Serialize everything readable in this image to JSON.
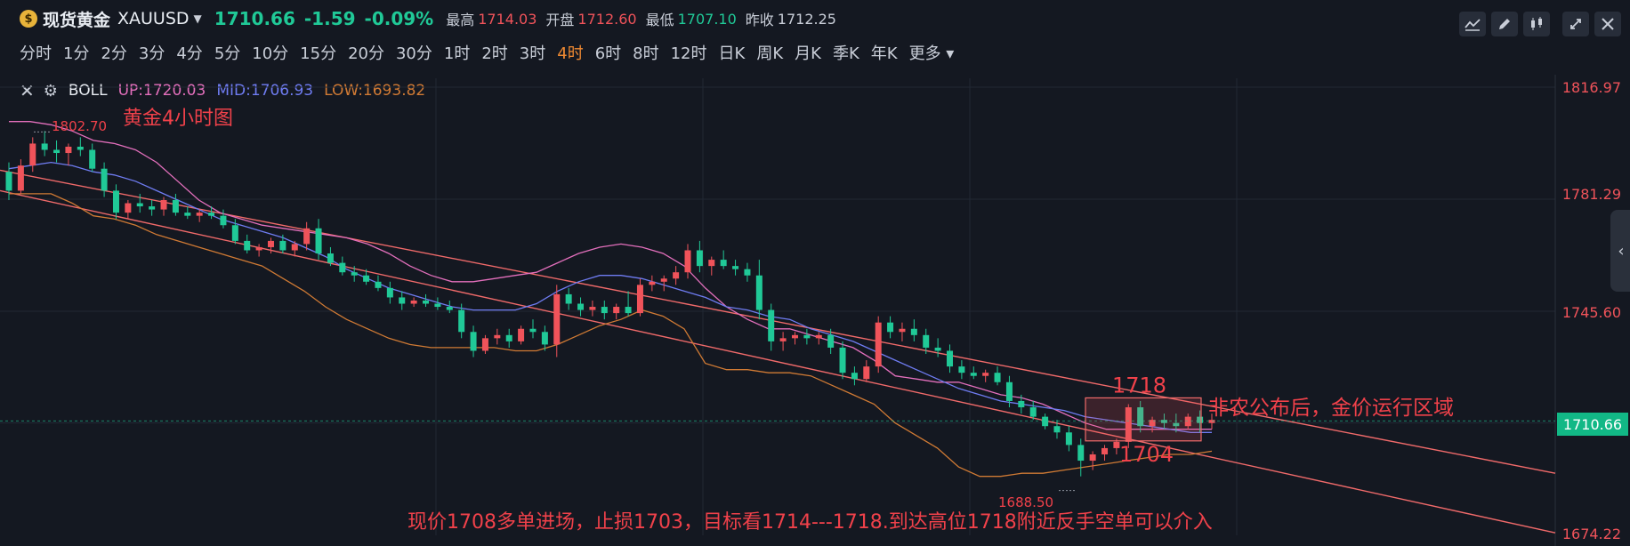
{
  "header": {
    "coin_glyph": "$",
    "name": "现货黄金",
    "symbol": "XAUUSD",
    "price": "1710.66",
    "change": "-1.59",
    "change_pct": "-0.09%",
    "high_label": "最高",
    "high": "1714.03",
    "open_label": "开盘",
    "open": "1712.60",
    "low_label": "最低",
    "low": "1707.10",
    "prev_label": "昨收",
    "prev": "1712.25"
  },
  "periods": [
    "分时",
    "1分",
    "2分",
    "3分",
    "4分",
    "5分",
    "10分",
    "15分",
    "20分",
    "30分",
    "1时",
    "2时",
    "3时",
    "4时",
    "6时",
    "8时",
    "12时",
    "日K",
    "周K",
    "月K",
    "季K",
    "年K",
    "更多"
  ],
  "active_period": "4时",
  "toolbar_icons": [
    "indicator-icon",
    "draw-icon",
    "candle-style-icon",
    "fullscreen-icon",
    "close-icon"
  ],
  "indicator": {
    "name": "BOLL",
    "up": "UP:1720.03",
    "mid": "MID:1706.93",
    "low": "LOW:1693.82"
  },
  "colors": {
    "up": "#f0535a",
    "down": "#20c997",
    "boll_up": "#e36fbc",
    "boll_mid": "#6f7cf2",
    "boll_low": "#d07a34",
    "channel": "#f06a6a"
  },
  "chart_data": {
    "type": "candlestick",
    "timeframe": "4时",
    "y_axis_labels": [
      "1816.97",
      "1781.29",
      "1745.60",
      "1674.22"
    ],
    "ylim": [
      1674.22,
      1816.97
    ],
    "current_price_label": "1710.66",
    "high_marker": "1802.70",
    "low_marker": "1688.50",
    "annotations": {
      "title": "黄金4小时图",
      "zone_top": "1718",
      "zone_bottom": "1704",
      "zone_note": "非农公布后，金价运行区域",
      "plan": "现价1708多单进场，止损1703，目标看1714---1718.到达高位1718附近反手空单可以介入"
    },
    "candles": [
      [
        1790,
        1793,
        1781,
        1784
      ],
      [
        1784,
        1794,
        1783,
        1792
      ],
      [
        1792,
        1801,
        1790,
        1799
      ],
      [
        1799,
        1803,
        1795,
        1797
      ],
      [
        1797,
        1800,
        1793,
        1796
      ],
      [
        1796,
        1799,
        1792,
        1798
      ],
      [
        1798,
        1801,
        1795,
        1797
      ],
      [
        1797,
        1799,
        1790,
        1791
      ],
      [
        1791,
        1793,
        1782,
        1784
      ],
      [
        1784,
        1786,
        1775,
        1777
      ],
      [
        1777,
        1781,
        1775,
        1780
      ],
      [
        1780,
        1783,
        1777,
        1779
      ],
      [
        1779,
        1781,
        1776,
        1778
      ],
      [
        1778,
        1782,
        1776,
        1781
      ],
      [
        1781,
        1783,
        1776,
        1777
      ],
      [
        1777,
        1779,
        1775,
        1776
      ],
      [
        1776,
        1778,
        1774,
        1777
      ],
      [
        1777,
        1779,
        1775,
        1776
      ],
      [
        1776,
        1778,
        1772,
        1773
      ],
      [
        1773,
        1775,
        1767,
        1768
      ],
      [
        1768,
        1770,
        1764,
        1765
      ],
      [
        1765,
        1767,
        1763,
        1766
      ],
      [
        1766,
        1769,
        1764,
        1768
      ],
      [
        1768,
        1770,
        1764,
        1765
      ],
      [
        1765,
        1768,
        1763,
        1767
      ],
      [
        1767,
        1774,
        1765,
        1772
      ],
      [
        1772,
        1775,
        1762,
        1764
      ],
      [
        1764,
        1766,
        1760,
        1761
      ],
      [
        1761,
        1763,
        1757,
        1758
      ],
      [
        1758,
        1760,
        1755,
        1757
      ],
      [
        1757,
        1759,
        1754,
        1755
      ],
      [
        1755,
        1757,
        1752,
        1753
      ],
      [
        1753,
        1755,
        1748,
        1750
      ],
      [
        1750,
        1752,
        1746,
        1748
      ],
      [
        1748,
        1750,
        1747,
        1749
      ],
      [
        1749,
        1751,
        1747,
        1748
      ],
      [
        1748,
        1750,
        1746,
        1747
      ],
      [
        1747,
        1749,
        1745,
        1746
      ],
      [
        1746,
        1748,
        1737,
        1739
      ],
      [
        1739,
        1741,
        1731,
        1733
      ],
      [
        1733,
        1738,
        1732,
        1737
      ],
      [
        1737,
        1740,
        1735,
        1738
      ],
      [
        1738,
        1740,
        1734,
        1736
      ],
      [
        1736,
        1741,
        1735,
        1740
      ],
      [
        1740,
        1743,
        1737,
        1739
      ],
      [
        1739,
        1741,
        1733,
        1735
      ],
      [
        1735,
        1754,
        1731,
        1751
      ],
      [
        1751,
        1753,
        1746,
        1748
      ],
      [
        1748,
        1750,
        1744,
        1746
      ],
      [
        1746,
        1749,
        1744,
        1747
      ],
      [
        1747,
        1749,
        1743,
        1745
      ],
      [
        1745,
        1748,
        1743,
        1747
      ],
      [
        1747,
        1752,
        1744,
        1745
      ],
      [
        1745,
        1756,
        1744,
        1754
      ],
      [
        1754,
        1757,
        1752,
        1755
      ],
      [
        1755,
        1757,
        1752,
        1756
      ],
      [
        1756,
        1760,
        1754,
        1758
      ],
      [
        1758,
        1767,
        1756,
        1765
      ],
      [
        1765,
        1768,
        1758,
        1760
      ],
      [
        1760,
        1763,
        1757,
        1762
      ],
      [
        1762,
        1765,
        1759,
        1760
      ],
      [
        1760,
        1762,
        1757,
        1759
      ],
      [
        1759,
        1761,
        1755,
        1757
      ],
      [
        1757,
        1762,
        1743,
        1746
      ],
      [
        1746,
        1748,
        1733,
        1736
      ],
      [
        1736,
        1739,
        1733,
        1737
      ],
      [
        1737,
        1739,
        1735,
        1738
      ],
      [
        1738,
        1740,
        1735,
        1737
      ],
      [
        1737,
        1739,
        1735,
        1738
      ],
      [
        1738,
        1740,
        1732,
        1734
      ],
      [
        1734,
        1736,
        1724,
        1726
      ],
      [
        1726,
        1728,
        1722,
        1724
      ],
      [
        1724,
        1730,
        1723,
        1728
      ],
      [
        1728,
        1744,
        1726,
        1742
      ],
      [
        1742,
        1744,
        1737,
        1739
      ],
      [
        1739,
        1742,
        1736,
        1740
      ],
      [
        1740,
        1743,
        1736,
        1738
      ],
      [
        1738,
        1740,
        1732,
        1734
      ],
      [
        1734,
        1737,
        1731,
        1733
      ],
      [
        1733,
        1735,
        1726,
        1728
      ],
      [
        1728,
        1730,
        1724,
        1726
      ],
      [
        1726,
        1728,
        1724,
        1725
      ],
      [
        1725,
        1727,
        1723,
        1726
      ],
      [
        1726,
        1728,
        1722,
        1723
      ],
      [
        1723,
        1725,
        1715,
        1717
      ],
      [
        1717,
        1719,
        1713,
        1715
      ],
      [
        1715,
        1717,
        1711,
        1712
      ],
      [
        1712,
        1713,
        1708,
        1709
      ],
      [
        1709,
        1711,
        1705,
        1707
      ],
      [
        1707,
        1709,
        1701,
        1703
      ],
      [
        1703,
        1705,
        1693,
        1698
      ],
      [
        1698,
        1701,
        1695,
        1700
      ],
      [
        1700,
        1703,
        1698,
        1702
      ],
      [
        1702,
        1705,
        1700,
        1704
      ],
      [
        1704,
        1716,
        1702,
        1715
      ],
      [
        1715,
        1717,
        1707,
        1709
      ],
      [
        1709,
        1712,
        1707,
        1711
      ],
      [
        1711,
        1713,
        1708,
        1710
      ],
      [
        1710,
        1713,
        1707,
        1709
      ],
      [
        1709,
        1713,
        1708,
        1712
      ],
      [
        1712,
        1714,
        1707,
        1710
      ],
      [
        1710,
        1713,
        1708,
        1711
      ]
    ],
    "boll_up_series": [
      1806,
      1806,
      1805,
      1803,
      1800,
      1799,
      1797,
      1793,
      1787,
      1781,
      1777,
      1775,
      1773,
      1772,
      1771,
      1770,
      1769,
      1767,
      1764,
      1760,
      1757,
      1755,
      1755,
      1756,
      1757,
      1758,
      1761,
      1764,
      1766,
      1767,
      1766,
      1764,
      1760,
      1753,
      1747,
      1743,
      1740,
      1740,
      1738,
      1736,
      1734,
      1730,
      1725,
      1724,
      1723,
      1723,
      1721,
      1719,
      1718,
      1716,
      1713,
      1710,
      1708,
      1708,
      1708,
      1708,
      1708,
      1708
    ],
    "boll_mid_series": [
      1791,
      1792,
      1793,
      1792,
      1790,
      1789,
      1787,
      1784,
      1781,
      1778,
      1775,
      1773,
      1771,
      1769,
      1766,
      1763,
      1759,
      1756,
      1753,
      1751,
      1749,
      1747,
      1746,
      1746,
      1746,
      1748,
      1752,
      1755,
      1757,
      1757,
      1756,
      1754,
      1752,
      1750,
      1747,
      1746,
      1744,
      1743,
      1740,
      1738,
      1736,
      1733,
      1730,
      1727,
      1724,
      1721,
      1719,
      1717,
      1716,
      1715,
      1714,
      1712,
      1711,
      1710,
      1709,
      1708,
      1707,
      1707
    ],
    "boll_low_series": [
      1783,
      1783,
      1783,
      1780,
      1776,
      1775,
      1773,
      1770,
      1768,
      1766,
      1764,
      1762,
      1760,
      1756,
      1752,
      1747,
      1743,
      1740,
      1737,
      1735,
      1734,
      1734,
      1734,
      1734,
      1733,
      1733,
      1735,
      1738,
      1741,
      1743,
      1746,
      1744,
      1740,
      1729,
      1727,
      1727,
      1726,
      1726,
      1725,
      1722,
      1719,
      1716,
      1710,
      1706,
      1702,
      1696,
      1693,
      1693,
      1694,
      1694,
      1695,
      1696,
      1697,
      1698,
      1699,
      1700,
      1700,
      1701
    ],
    "channel_upper": [
      [
        1790.5,
        0
      ],
      [
        1694.0,
        1
      ]
    ],
    "channel_lower": [
      [
        1784.0,
        0
      ],
      [
        1675.0,
        1
      ]
    ]
  }
}
